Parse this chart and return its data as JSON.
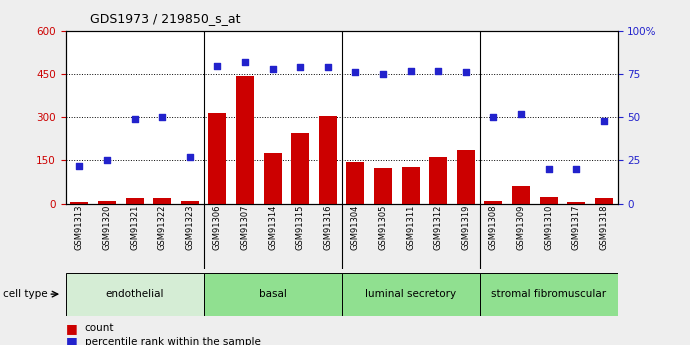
{
  "title": "GDS1973 / 219850_s_at",
  "samples": [
    "GSM91313",
    "GSM91320",
    "GSM91321",
    "GSM91322",
    "GSM91323",
    "GSM91306",
    "GSM91307",
    "GSM91314",
    "GSM91315",
    "GSM91316",
    "GSM91304",
    "GSM91305",
    "GSM91311",
    "GSM91312",
    "GSM91319",
    "GSM91308",
    "GSM91309",
    "GSM91310",
    "GSM91317",
    "GSM91318"
  ],
  "counts": [
    5,
    10,
    20,
    20,
    8,
    315,
    445,
    175,
    245,
    305,
    145,
    125,
    128,
    162,
    188,
    10,
    62,
    22,
    5,
    18
  ],
  "percentiles": [
    22,
    25,
    49,
    50,
    27,
    80,
    82,
    78,
    79,
    79,
    76,
    75,
    77,
    77,
    76,
    50,
    52,
    20,
    20,
    48
  ],
  "groups": [
    {
      "name": "endothelial",
      "start": 0,
      "end": 5
    },
    {
      "name": "basal",
      "start": 5,
      "end": 10
    },
    {
      "name": "luminal secretory",
      "start": 10,
      "end": 15
    },
    {
      "name": "stromal fibromuscular",
      "start": 15,
      "end": 20
    }
  ],
  "group_bg_colors": [
    "#d5edd5",
    "#90e090",
    "#90e090",
    "#90e090"
  ],
  "bar_color": "#cc0000",
  "dot_color": "#2222cc",
  "ylim_left": [
    0,
    600
  ],
  "ylim_right": [
    0,
    100
  ],
  "yticks_left": [
    0,
    150,
    300,
    450,
    600
  ],
  "yticks_right": [
    0,
    25,
    50,
    75,
    100
  ],
  "bg_color": "#eeeeee",
  "plot_bg": "#ffffff",
  "cell_type_label": "cell type"
}
